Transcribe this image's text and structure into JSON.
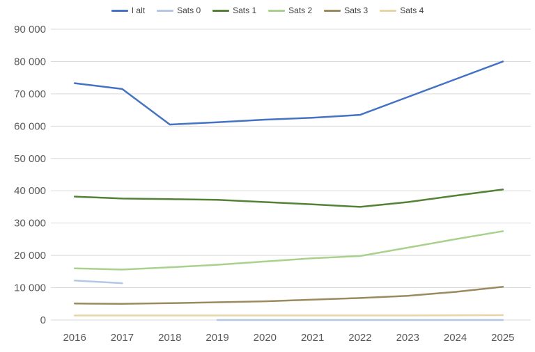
{
  "chart_data": {
    "type": "line",
    "title": "",
    "xlabel": "",
    "ylabel": "",
    "categories": [
      "2016",
      "2017",
      "2018",
      "2019",
      "2020",
      "2021",
      "2022",
      "2023",
      "2024",
      "2025"
    ],
    "series": [
      {
        "name": "I alt",
        "color": "#4472C4",
        "values": [
          73300,
          71500,
          60500,
          61200,
          62000,
          62600,
          63500,
          69000,
          74500,
          80000
        ]
      },
      {
        "name": "Sats 0",
        "color": "#B4C7E7",
        "values": [
          12200,
          11400,
          null,
          0,
          0,
          0,
          0,
          0,
          0,
          0
        ]
      },
      {
        "name": "Sats 1",
        "color": "#548235",
        "values": [
          38200,
          37600,
          37400,
          37200,
          36500,
          35800,
          35000,
          36500,
          38500,
          40400
        ]
      },
      {
        "name": "Sats 2",
        "color": "#A9D18E",
        "values": [
          16000,
          15600,
          16300,
          17100,
          18100,
          19100,
          19800,
          22400,
          25000,
          27500
        ]
      },
      {
        "name": "Sats 3",
        "color": "#9A8A5E",
        "values": [
          5100,
          5000,
          5200,
          5500,
          5800,
          6300,
          6800,
          7500,
          8700,
          10300
        ]
      },
      {
        "name": "Sats 4",
        "color": "#E8D5A5",
        "values": [
          1400,
          1400,
          1400,
          1400,
          1400,
          1400,
          1400,
          1400,
          1450,
          1500
        ]
      }
    ],
    "ylim": [
      0,
      90000
    ],
    "y_ticks": [
      0,
      10000,
      20000,
      30000,
      40000,
      50000,
      60000,
      70000,
      80000,
      90000
    ],
    "y_tick_labels": [
      "0",
      "10 000",
      "20 000",
      "30 000",
      "40 000",
      "50 000",
      "60 000",
      "70 000",
      "80 000",
      "90 000"
    ],
    "grid": "horizontal",
    "legend_position": "top",
    "gridline_color": "#D9D9D9",
    "axis_label_color": "#595959"
  }
}
